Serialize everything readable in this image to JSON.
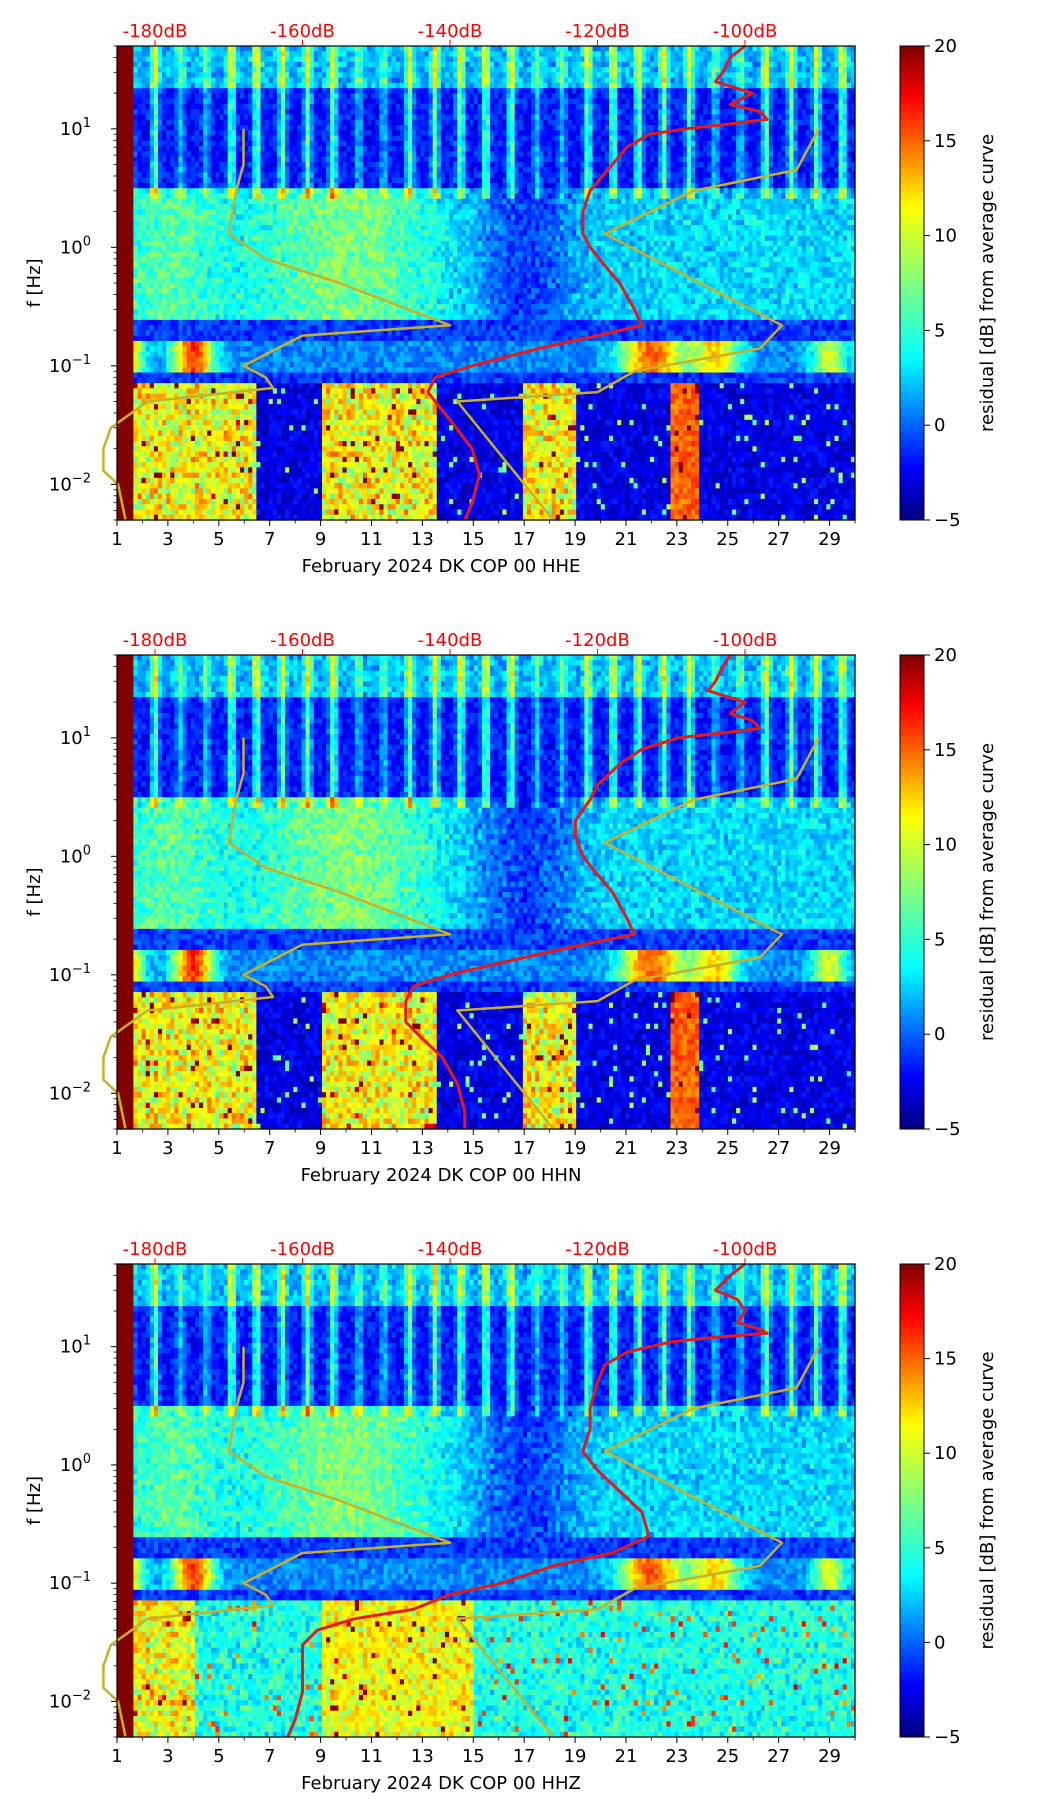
{
  "figure": {
    "colorbar": {
      "label": "residual [dB] from average curve",
      "ticks": [
        "20",
        "15",
        "10",
        "5",
        "0",
        "−5"
      ],
      "range": [
        -5,
        20
      ],
      "colormap": "jet"
    },
    "y_axis": {
      "label": "f [Hz]",
      "ticks": [
        {
          "value": 10,
          "base": "10",
          "exp": "1"
        },
        {
          "value": 1,
          "base": "10",
          "exp": "0"
        },
        {
          "value": 0.1,
          "base": "10",
          "exp": "−1"
        },
        {
          "value": 0.01,
          "base": "10",
          "exp": "−2"
        }
      ],
      "range": [
        0.005,
        50
      ],
      "scale": "log"
    },
    "x_axis": {
      "ticks": [
        "1",
        "3",
        "5",
        "7",
        "9",
        "11",
        "13",
        "15",
        "17",
        "19",
        "21",
        "23",
        "25",
        "27",
        "29"
      ],
      "range": [
        1,
        30
      ]
    },
    "top_axis": {
      "ticks": [
        "-180dB",
        "-160dB",
        "-140dB",
        "-120dB",
        "-100dB"
      ],
      "values": [
        -180,
        -160,
        -140,
        -120,
        -100
      ],
      "color": "#ff0000"
    },
    "colors": {
      "red_curve": "#e41a1c",
      "model_curves": "#c9b027"
    }
  },
  "chart_data": [
    {
      "type": "heatmap",
      "xlabel": "February 2024 DK COP 00 HHE",
      "ylabel": "f [Hz]",
      "series": [
        {
          "kind": "median-psd",
          "color": "red",
          "points": [
            [
              -100,
              50
            ],
            [
              -102,
              40
            ],
            [
              -103,
              30
            ],
            [
              -104,
              25
            ],
            [
              -99,
              20
            ],
            [
              -102,
              16
            ],
            [
              -98,
              14
            ],
            [
              -97,
              12
            ],
            [
              -102,
              11
            ],
            [
              -108,
              10
            ],
            [
              -113,
              9
            ],
            [
              -116,
              7
            ],
            [
              -118,
              5
            ],
            [
              -121,
              3
            ],
            [
              -122,
              2
            ],
            [
              -122,
              1.3
            ],
            [
              -121,
              1
            ],
            [
              -119,
              0.7
            ],
            [
              -117,
              0.5
            ],
            [
              -115,
              0.3
            ],
            [
              -114,
              0.22
            ],
            [
              -120,
              0.18
            ],
            [
              -128,
              0.14
            ],
            [
              -137,
              0.1
            ],
            [
              -142,
              0.08
            ],
            [
              -143,
              0.06
            ],
            [
              -142,
              0.05
            ],
            [
              -140,
              0.035
            ],
            [
              -137,
              0.02
            ],
            [
              -136,
              0.012
            ],
            [
              -137,
              0.007
            ],
            [
              -138,
              0.005
            ]
          ]
        },
        {
          "kind": "noise-model-low",
          "color": "olive",
          "points": [
            [
              -168,
              10
            ],
            [
              -168,
              5
            ],
            [
              -169,
              3
            ],
            [
              -170,
              1.3
            ],
            [
              -165,
              0.8
            ],
            [
              -155,
              0.5
            ],
            [
              -140,
              0.22
            ],
            [
              -160,
              0.18
            ],
            [
              -168,
              0.1
            ],
            [
              -165,
              0.08
            ],
            [
              -164,
              0.065
            ],
            [
              -181,
              0.05
            ],
            [
              -186,
              0.03
            ],
            [
              -187,
              0.02
            ],
            [
              -187,
              0.013
            ],
            [
              -185,
              0.01
            ],
            [
              -184,
              0.005
            ]
          ]
        },
        {
          "kind": "noise-model-high",
          "color": "olive",
          "points": [
            [
              -90,
              10
            ],
            [
              -93,
              4.5
            ],
            [
              -107,
              3
            ],
            [
              -119,
              1.3
            ],
            [
              -95,
              0.22
            ],
            [
              -98,
              0.14
            ],
            [
              -115,
              0.09
            ],
            [
              -120,
              0.06
            ],
            [
              -139,
              0.05
            ],
            [
              -126,
              0.005
            ]
          ]
        }
      ]
    },
    {
      "type": "heatmap",
      "xlabel": "February 2024 DK COP 00 HHN",
      "ylabel": "f [Hz]",
      "series": [
        {
          "kind": "median-psd",
          "color": "red",
          "points": [
            [
              -102,
              50
            ],
            [
              -103,
              40
            ],
            [
              -104,
              30
            ],
            [
              -105,
              25
            ],
            [
              -100,
              20
            ],
            [
              -102,
              16
            ],
            [
              -99,
              14
            ],
            [
              -98,
              12
            ],
            [
              -103,
              11
            ],
            [
              -109,
              10
            ],
            [
              -114,
              8
            ],
            [
              -117,
              6
            ],
            [
              -120,
              4
            ],
            [
              -121,
              3
            ],
            [
              -123,
              2
            ],
            [
              -123,
              1.5
            ],
            [
              -122,
              1
            ],
            [
              -120,
              0.7
            ],
            [
              -118,
              0.5
            ],
            [
              -116,
              0.3
            ],
            [
              -115,
              0.22
            ],
            [
              -122,
              0.18
            ],
            [
              -130,
              0.14
            ],
            [
              -140,
              0.1
            ],
            [
              -145,
              0.08
            ],
            [
              -146,
              0.06
            ],
            [
              -146,
              0.04
            ],
            [
              -144,
              0.03
            ],
            [
              -141,
              0.02
            ],
            [
              -139,
              0.012
            ],
            [
              -138,
              0.007
            ],
            [
              -138,
              0.005
            ]
          ]
        },
        {
          "kind": "noise-model-low",
          "color": "olive",
          "points": [
            [
              -168,
              10
            ],
            [
              -168,
              5
            ],
            [
              -169,
              3
            ],
            [
              -170,
              1.3
            ],
            [
              -165,
              0.8
            ],
            [
              -155,
              0.5
            ],
            [
              -140,
              0.22
            ],
            [
              -160,
              0.18
            ],
            [
              -168,
              0.1
            ],
            [
              -165,
              0.08
            ],
            [
              -164,
              0.065
            ],
            [
              -181,
              0.05
            ],
            [
              -186,
              0.03
            ],
            [
              -187,
              0.02
            ],
            [
              -187,
              0.013
            ],
            [
              -185,
              0.01
            ],
            [
              -184,
              0.005
            ]
          ]
        },
        {
          "kind": "noise-model-high",
          "color": "olive",
          "points": [
            [
              -90,
              10
            ],
            [
              -93,
              4.5
            ],
            [
              -107,
              3
            ],
            [
              -119,
              1.3
            ],
            [
              -95,
              0.22
            ],
            [
              -98,
              0.14
            ],
            [
              -115,
              0.09
            ],
            [
              -120,
              0.06
            ],
            [
              -139,
              0.05
            ],
            [
              -126,
              0.005
            ]
          ]
        }
      ]
    },
    {
      "type": "heatmap",
      "xlabel": "February 2024 DK COP 00 HHZ",
      "ylabel": "f [Hz]",
      "series": [
        {
          "kind": "median-psd",
          "color": "red",
          "points": [
            [
              -100,
              50
            ],
            [
              -102,
              40
            ],
            [
              -104,
              30
            ],
            [
              -101,
              25
            ],
            [
              -100,
              20
            ],
            [
              -101,
              16
            ],
            [
              -98,
              14
            ],
            [
              -97,
              13
            ],
            [
              -104,
              12
            ],
            [
              -110,
              11
            ],
            [
              -116,
              9
            ],
            [
              -119,
              7
            ],
            [
              -120,
              5
            ],
            [
              -121,
              3
            ],
            [
              -121,
              2
            ],
            [
              -122,
              1.3
            ],
            [
              -120,
              0.9
            ],
            [
              -117,
              0.6
            ],
            [
              -114,
              0.4
            ],
            [
              -113,
              0.25
            ],
            [
              -118,
              0.18
            ],
            [
              -126,
              0.14
            ],
            [
              -133,
              0.1
            ],
            [
              -140,
              0.08
            ],
            [
              -145,
              0.06
            ],
            [
              -153,
              0.05
            ],
            [
              -158,
              0.04
            ],
            [
              -160,
              0.03
            ],
            [
              -160,
              0.02
            ],
            [
              -160,
              0.012
            ],
            [
              -161,
              0.007
            ],
            [
              -162,
              0.005
            ]
          ]
        },
        {
          "kind": "noise-model-low",
          "color": "olive",
          "points": [
            [
              -168,
              10
            ],
            [
              -168,
              5
            ],
            [
              -169,
              3
            ],
            [
              -170,
              1.3
            ],
            [
              -165,
              0.8
            ],
            [
              -155,
              0.5
            ],
            [
              -140,
              0.22
            ],
            [
              -160,
              0.18
            ],
            [
              -168,
              0.1
            ],
            [
              -165,
              0.08
            ],
            [
              -164,
              0.065
            ],
            [
              -181,
              0.05
            ],
            [
              -186,
              0.03
            ],
            [
              -187,
              0.02
            ],
            [
              -187,
              0.013
            ],
            [
              -185,
              0.01
            ],
            [
              -184,
              0.005
            ]
          ]
        },
        {
          "kind": "noise-model-high",
          "color": "olive",
          "points": [
            [
              -90,
              10
            ],
            [
              -93,
              4.5
            ],
            [
              -107,
              3
            ],
            [
              -119,
              1.3
            ],
            [
              -95,
              0.22
            ],
            [
              -98,
              0.14
            ],
            [
              -115,
              0.09
            ],
            [
              -120,
              0.06
            ],
            [
              -139,
              0.05
            ],
            [
              -126,
              0.005
            ]
          ]
        }
      ]
    }
  ]
}
